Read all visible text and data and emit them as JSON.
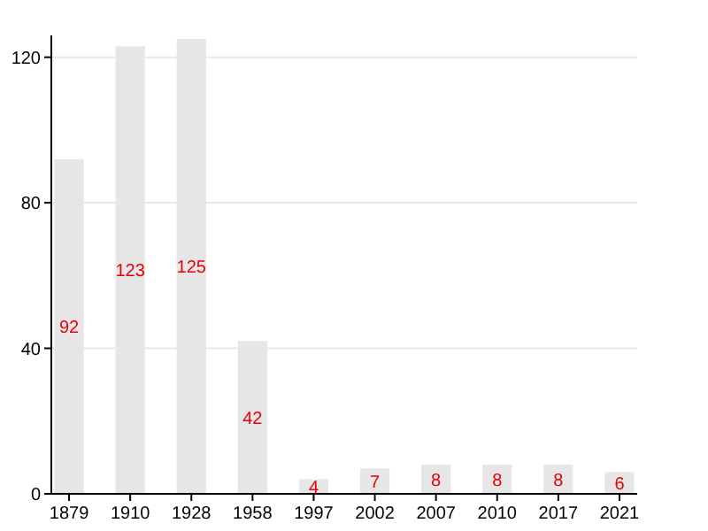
{
  "chart_data": {
    "type": "bar",
    "categories": [
      "1879",
      "1910",
      "1928",
      "1958",
      "1997",
      "2002",
      "2007",
      "2010",
      "2017",
      "2021"
    ],
    "values": [
      92,
      123,
      125,
      42,
      4,
      7,
      8,
      8,
      8,
      6
    ],
    "color": "#e6e6e6",
    "ylim": [
      0,
      126
    ],
    "yticks": [
      0,
      40,
      80,
      120
    ],
    "grid": "y",
    "data_labels": true
  }
}
